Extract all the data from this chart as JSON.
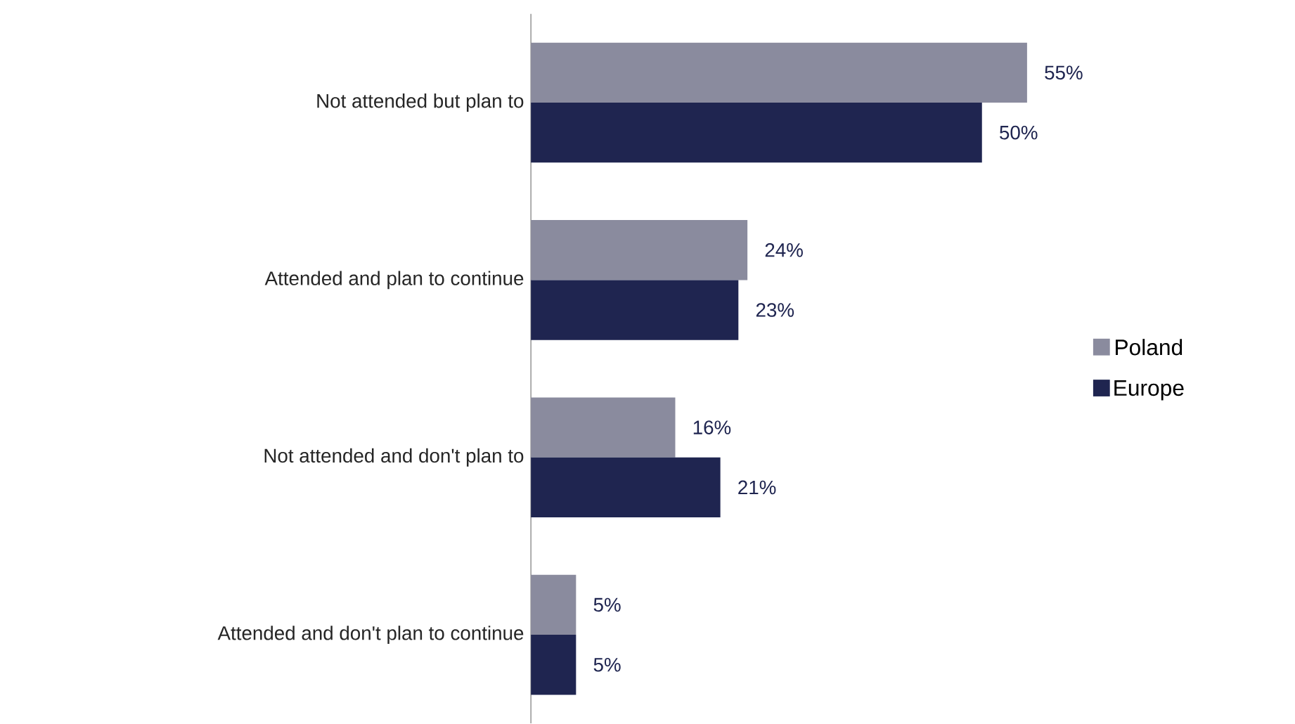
{
  "chart_data": {
    "type": "bar",
    "orientation": "horizontal",
    "categories": [
      "Not attended but plan to",
      "Attended and plan to continue",
      "Not attended and don't plan to",
      "Attended and don't plan to continue"
    ],
    "series": [
      {
        "name": "Poland",
        "color": "#8a8b9e",
        "values": [
          55,
          24,
          16,
          5
        ],
        "value_labels": [
          "55%",
          "24%",
          "16%",
          "5%"
        ]
      },
      {
        "name": "Europe",
        "color": "#1f2550",
        "values": [
          50,
          23,
          21,
          5
        ],
        "value_labels": [
          "50%",
          "23%",
          "21%",
          "5%"
        ]
      }
    ],
    "legend": "right"
  }
}
